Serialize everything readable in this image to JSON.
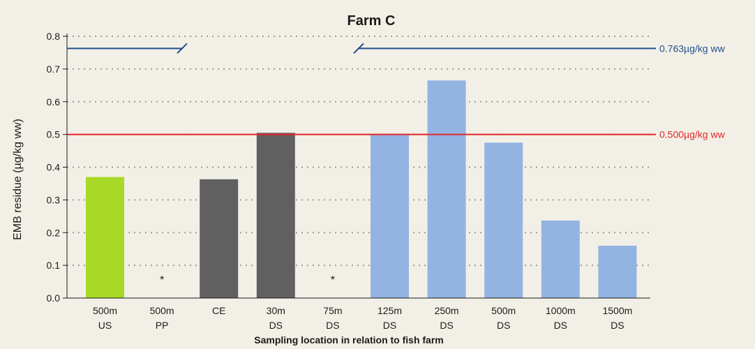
{
  "chart_data": {
    "type": "bar",
    "title": "Farm C",
    "xlabel": "Sampling location in relation to fish farm",
    "ylabel": "EMB residue (µg/kg ww)",
    "ylim": [
      0,
      0.8
    ],
    "yticks": [
      "0.0",
      "0.1",
      "0.2",
      "0.3",
      "0.4",
      "0.5",
      "0.6",
      "0.7",
      "0.8"
    ],
    "grid": true,
    "categories": [
      {
        "line1": "500m",
        "line2": "US"
      },
      {
        "line1": "500m",
        "line2": "PP"
      },
      {
        "line1": "CE",
        "line2": ""
      },
      {
        "line1": "30m",
        "line2": "DS"
      },
      {
        "line1": "75m",
        "line2": "DS"
      },
      {
        "line1": "125m",
        "line2": "DS"
      },
      {
        "line1": "250m",
        "line2": "DS"
      },
      {
        "line1": "500m",
        "line2": "DS"
      },
      {
        "line1": "1000m",
        "line2": "DS"
      },
      {
        "line1": "1500m",
        "line2": "DS"
      }
    ],
    "values": [
      0.37,
      null,
      0.363,
      0.505,
      null,
      0.498,
      0.665,
      0.475,
      0.237,
      0.16
    ],
    "bar_colors": [
      "#a8d926",
      null,
      "#606060",
      "#606060",
      null,
      "#93b4e3",
      "#93b4e3",
      "#93b4e3",
      "#93b4e3",
      "#93b4e3"
    ],
    "missing_marker": "*",
    "reference_lines": [
      {
        "value": 0.5,
        "label": "0.500µg/kg ww",
        "color": "#e3252b"
      },
      {
        "value": 0.763,
        "label": "0.763µg/kg ww",
        "color": "#1f4e8c"
      }
    ]
  }
}
